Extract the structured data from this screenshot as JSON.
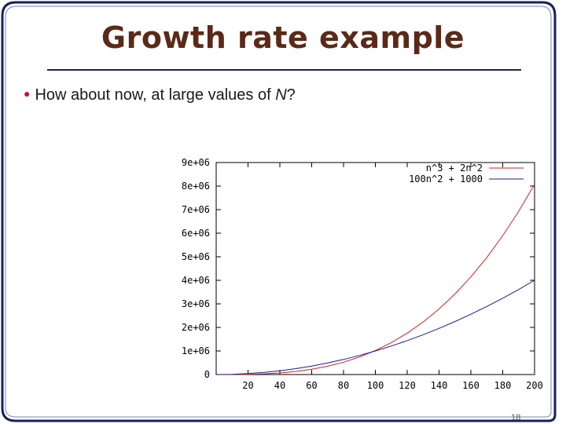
{
  "slide": {
    "title": "Growth rate example",
    "bullet_prefix": "How about now, at large values of ",
    "bullet_var": "N",
    "bullet_suffix": "?",
    "page_number": "18"
  },
  "colors": {
    "frame": "#1a2060",
    "title": "#5a2a18",
    "bullet_marker": "#c8102e",
    "series_cubic": "#d42020",
    "series_quadratic": "#1a1aa0"
  },
  "chart_data": {
    "type": "line",
    "title": "",
    "xlabel": "",
    "ylabel": "",
    "xlim": [
      0,
      200
    ],
    "ylim": [
      0,
      9000000
    ],
    "x_ticks": [
      20,
      40,
      60,
      80,
      100,
      120,
      140,
      160,
      180,
      200
    ],
    "x_tick_labels": [
      "20",
      "40",
      "60",
      "80",
      "100",
      "120",
      "140",
      "160",
      "180",
      "200"
    ],
    "y_ticks": [
      0,
      1000000,
      2000000,
      3000000,
      4000000,
      5000000,
      6000000,
      7000000,
      8000000,
      9000000
    ],
    "y_tick_labels": [
      "0",
      "1e+06",
      "2e+06",
      "3e+06",
      "4e+06",
      "5e+06",
      "6e+06",
      "7e+06",
      "8e+06",
      "9e+06"
    ],
    "grid": false,
    "legend_position": "top-right",
    "series": [
      {
        "name": "n^3 + 2n^2",
        "x": [
          1,
          10,
          20,
          30,
          40,
          50,
          60,
          70,
          80,
          90,
          100,
          110,
          120,
          130,
          140,
          150,
          160,
          170,
          180,
          190,
          200
        ],
        "values": [
          3,
          1200,
          8800,
          28800,
          67200,
          130000,
          223200,
          352800,
          524800,
          745200,
          1020000,
          1355200,
          1756800,
          2230800,
          2783200,
          3420000,
          4147200,
          4970800,
          5896800,
          6931200,
          8080000
        ]
      },
      {
        "name": "100n^2 + 1000",
        "x": [
          1,
          10,
          20,
          30,
          40,
          50,
          60,
          70,
          80,
          90,
          100,
          110,
          120,
          130,
          140,
          150,
          160,
          170,
          180,
          190,
          200
        ],
        "values": [
          1100,
          11000,
          41000,
          91000,
          161000,
          251000,
          361000,
          491000,
          641000,
          811000,
          1001000,
          1211000,
          1441000,
          1691000,
          1961000,
          2251000,
          2561000,
          2891000,
          3241000,
          3611000,
          4001000
        ]
      }
    ]
  }
}
